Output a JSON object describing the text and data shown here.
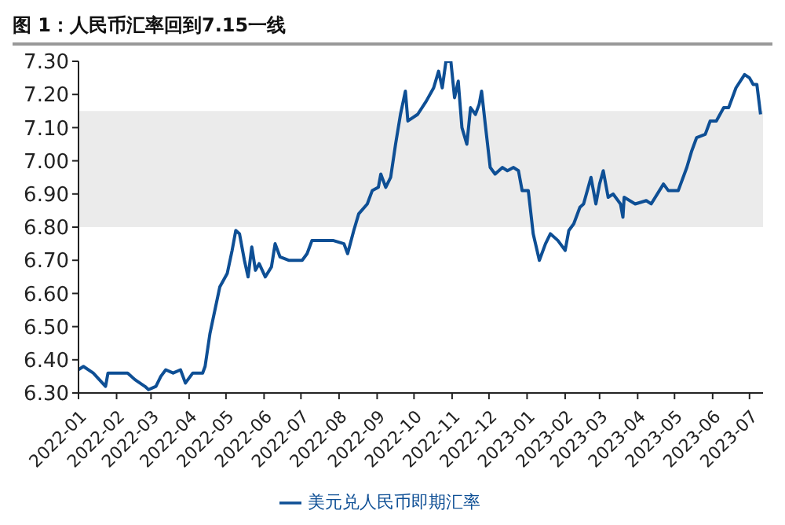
{
  "chart_data": {
    "type": "line",
    "title": "图 1：人民币汇率回到7.15一线",
    "x": [
      "2022-01-01",
      "2022-01-05",
      "2022-01-13",
      "2022-01-23",
      "2022-01-25",
      "2022-02-10",
      "2022-02-16",
      "2022-02-24",
      "2022-02-27",
      "2022-03-05",
      "2022-03-09",
      "2022-03-13",
      "2022-03-19",
      "2022-03-25",
      "2022-03-29",
      "2022-04-04",
      "2022-04-12",
      "2022-04-14",
      "2022-04-18",
      "2022-04-22",
      "2022-04-26",
      "2022-05-02",
      "2022-05-06",
      "2022-05-09",
      "2022-05-12",
      "2022-05-16",
      "2022-05-19",
      "2022-05-22",
      "2022-05-25",
      "2022-05-28",
      "2022-06-02",
      "2022-06-07",
      "2022-06-10",
      "2022-06-14",
      "2022-06-21",
      "2022-07-02",
      "2022-07-06",
      "2022-07-10",
      "2022-07-19",
      "2022-07-27",
      "2022-08-05",
      "2022-08-08",
      "2022-08-13",
      "2022-08-17",
      "2022-08-24",
      "2022-08-28",
      "2022-09-02",
      "2022-09-04",
      "2022-09-08",
      "2022-09-12",
      "2022-09-16",
      "2022-09-20",
      "2022-09-24",
      "2022-09-26",
      "2022-10-04",
      "2022-10-11",
      "2022-10-17",
      "2022-10-21",
      "2022-10-24",
      "2022-10-27",
      "2022-10-31",
      "2022-11-03",
      "2022-11-06",
      "2022-11-09",
      "2022-11-13",
      "2022-11-16",
      "2022-11-20",
      "2022-11-23",
      "2022-11-25",
      "2022-11-28",
      "2022-12-02",
      "2022-12-06",
      "2022-12-12",
      "2022-12-16",
      "2022-12-21",
      "2022-12-25",
      "2022-12-28",
      "2023-01-02",
      "2023-01-06",
      "2023-01-11",
      "2023-01-16",
      "2023-01-20",
      "2023-01-26",
      "2023-02-01",
      "2023-02-04",
      "2023-02-08",
      "2023-02-13",
      "2023-02-16",
      "2023-02-22",
      "2023-02-26",
      "2023-03-01",
      "2023-03-04",
      "2023-03-08",
      "2023-03-12",
      "2023-03-18",
      "2023-03-20",
      "2023-03-21",
      "2023-03-30",
      "2023-04-08",
      "2023-04-12",
      "2023-04-22",
      "2023-04-26",
      "2023-05-04",
      "2023-05-11",
      "2023-05-15",
      "2023-05-19",
      "2023-05-26",
      "2023-05-30",
      "2023-06-04",
      "2023-06-10",
      "2023-06-14",
      "2023-06-20",
      "2023-06-27",
      "2023-07-01",
      "2023-07-04",
      "2023-07-07",
      "2023-07-10"
    ],
    "series": [
      {
        "name": "美元兑人民币即期汇率",
        "color": "#0e4f95",
        "values": [
          6.37,
          6.38,
          6.36,
          6.32,
          6.36,
          6.36,
          6.34,
          6.32,
          6.31,
          6.32,
          6.35,
          6.37,
          6.36,
          6.37,
          6.33,
          6.36,
          6.36,
          6.38,
          6.48,
          6.55,
          6.62,
          6.66,
          6.73,
          6.79,
          6.78,
          6.7,
          6.65,
          6.74,
          6.67,
          6.69,
          6.65,
          6.68,
          6.75,
          6.71,
          6.7,
          6.7,
          6.72,
          6.76,
          6.76,
          6.76,
          6.75,
          6.72,
          6.79,
          6.84,
          6.87,
          6.91,
          6.92,
          6.96,
          6.92,
          6.95,
          7.05,
          7.14,
          7.21,
          7.12,
          7.14,
          7.18,
          7.22,
          7.27,
          7.22,
          7.3,
          7.3,
          7.19,
          7.24,
          7.1,
          7.05,
          7.16,
          7.14,
          7.17,
          7.21,
          7.11,
          6.98,
          6.96,
          6.98,
          6.97,
          6.98,
          6.97,
          6.91,
          6.91,
          6.78,
          6.7,
          6.75,
          6.78,
          6.76,
          6.73,
          6.79,
          6.81,
          6.86,
          6.87,
          6.95,
          6.87,
          6.93,
          6.97,
          6.89,
          6.9,
          6.87,
          6.83,
          6.89,
          6.87,
          6.88,
          6.87,
          6.93,
          6.91,
          6.91,
          6.98,
          7.03,
          7.07,
          7.08,
          7.12,
          7.12,
          7.16,
          7.16,
          7.22,
          7.26,
          7.25,
          7.23,
          7.23,
          7.14
        ]
      }
    ],
    "xlim": [
      "2022-01-01",
      "2023-07-12"
    ],
    "xticks": [
      "2022-01",
      "2022-02",
      "2022-03",
      "2022-04",
      "2022-05",
      "2022-06",
      "2022-07",
      "2022-08",
      "2022-09",
      "2022-10",
      "2022-11",
      "2022-12",
      "2023-01",
      "2023-02",
      "2023-03",
      "2023-04",
      "2023-05",
      "2023-06",
      "2023-07"
    ],
    "ylim": [
      6.3,
      7.3
    ],
    "yticks": [
      {
        "value": 6.3,
        "label": "6.30"
      },
      {
        "value": 6.4,
        "label": "6.40"
      },
      {
        "value": 6.5,
        "label": "6.50"
      },
      {
        "value": 6.6,
        "label": "6.60"
      },
      {
        "value": 6.7,
        "label": "6.70"
      },
      {
        "value": 6.8,
        "label": "6.80"
      },
      {
        "value": 6.9,
        "label": "6.90"
      },
      {
        "value": 7.0,
        "label": "7.00"
      },
      {
        "value": 7.1,
        "label": "7.10"
      },
      {
        "value": 7.2,
        "label": "7.20"
      },
      {
        "value": 7.3,
        "label": "7.30"
      }
    ],
    "bands": [
      {
        "axis": "y",
        "from": 6.8,
        "to": 7.15,
        "color": "#ebebeb"
      }
    ],
    "legend": "bottom",
    "grid": false,
    "marker": "none",
    "line_style": "solid"
  }
}
